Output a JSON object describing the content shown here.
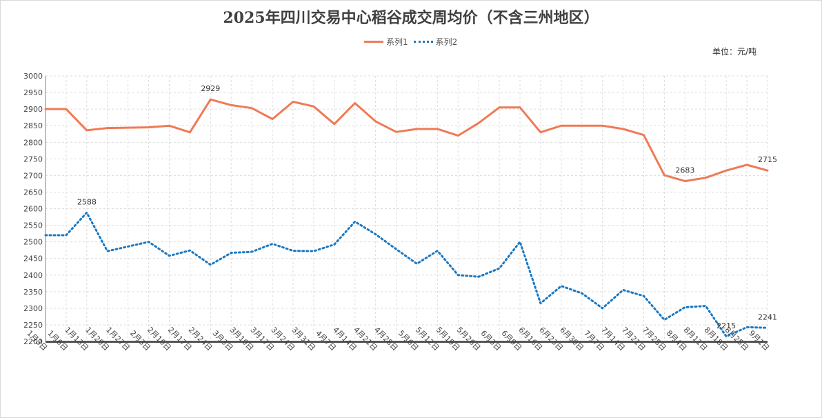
{
  "title": "2025年四川交易中心稻谷成交周均价（不含三州地区）",
  "unit_label": "单位：元/吨",
  "colors": {
    "series1": "#f07a55",
    "series2": "#1a78c2",
    "grid": "#dcdcdc",
    "axis": "#808080"
  },
  "chart_data": {
    "type": "line",
    "title": "2025年四川交易中心稻谷成交周均价（不含三州地区）",
    "xlabel": "",
    "ylabel": "",
    "ylim": [
      2200,
      3000
    ],
    "ytick_step": 50,
    "grid": true,
    "legend": "top-center",
    "categories": [
      "1月3日",
      "1月6日",
      "1月13日",
      "1月20日",
      "1月27日",
      "2月3日",
      "2月10日",
      "2月17日",
      "2月24日",
      "3月3日",
      "3月10日",
      "3月17日",
      "3月24日",
      "3月31日",
      "4月7日",
      "4月14日",
      "4月21日",
      "4月28日",
      "5月6日",
      "5月12日",
      "5月19日",
      "5月26日",
      "6月3日",
      "6月9日",
      "6月16日",
      "6月23日",
      "6月30日",
      "7月7日",
      "7月14日",
      "7月21日",
      "7月28日",
      "8月4日",
      "8月11日",
      "8月18日",
      "8月25日",
      "9月1日"
    ],
    "series": [
      {
        "name": "系列1",
        "style": "solid",
        "values": [
          2900,
          2900,
          2836,
          2843,
          2844,
          2845,
          2850,
          2830,
          2929,
          2912,
          2903,
          2870,
          2922,
          2908,
          2855,
          2918,
          2863,
          2831,
          2840,
          2840,
          2820,
          2858,
          2905,
          2905,
          2830,
          2850,
          2850,
          2850,
          2840,
          2822,
          2701,
          2683,
          2693,
          2715,
          2732,
          2715
        ]
      },
      {
        "name": "系列2",
        "style": "dotted",
        "values": [
          2520,
          2520,
          2588,
          2472,
          2486,
          2500,
          2458,
          2474,
          2431,
          2467,
          2470,
          2494,
          2473,
          2472,
          2492,
          2561,
          2523,
          2478,
          2434,
          2473,
          2400,
          2395,
          2420,
          2500,
          2315,
          2367,
          2345,
          2300,
          2355,
          2337,
          2265,
          2303,
          2307,
          2215,
          2243,
          2241
        ]
      }
    ],
    "data_labels": [
      {
        "series": 0,
        "index": 8,
        "text": "2929"
      },
      {
        "series": 0,
        "index": 31,
        "text": "2683"
      },
      {
        "series": 0,
        "index": 35,
        "text": "2715"
      },
      {
        "series": 1,
        "index": 2,
        "text": "2588"
      },
      {
        "series": 1,
        "index": 33,
        "text": "2215"
      },
      {
        "series": 1,
        "index": 35,
        "text": "2241"
      }
    ]
  }
}
